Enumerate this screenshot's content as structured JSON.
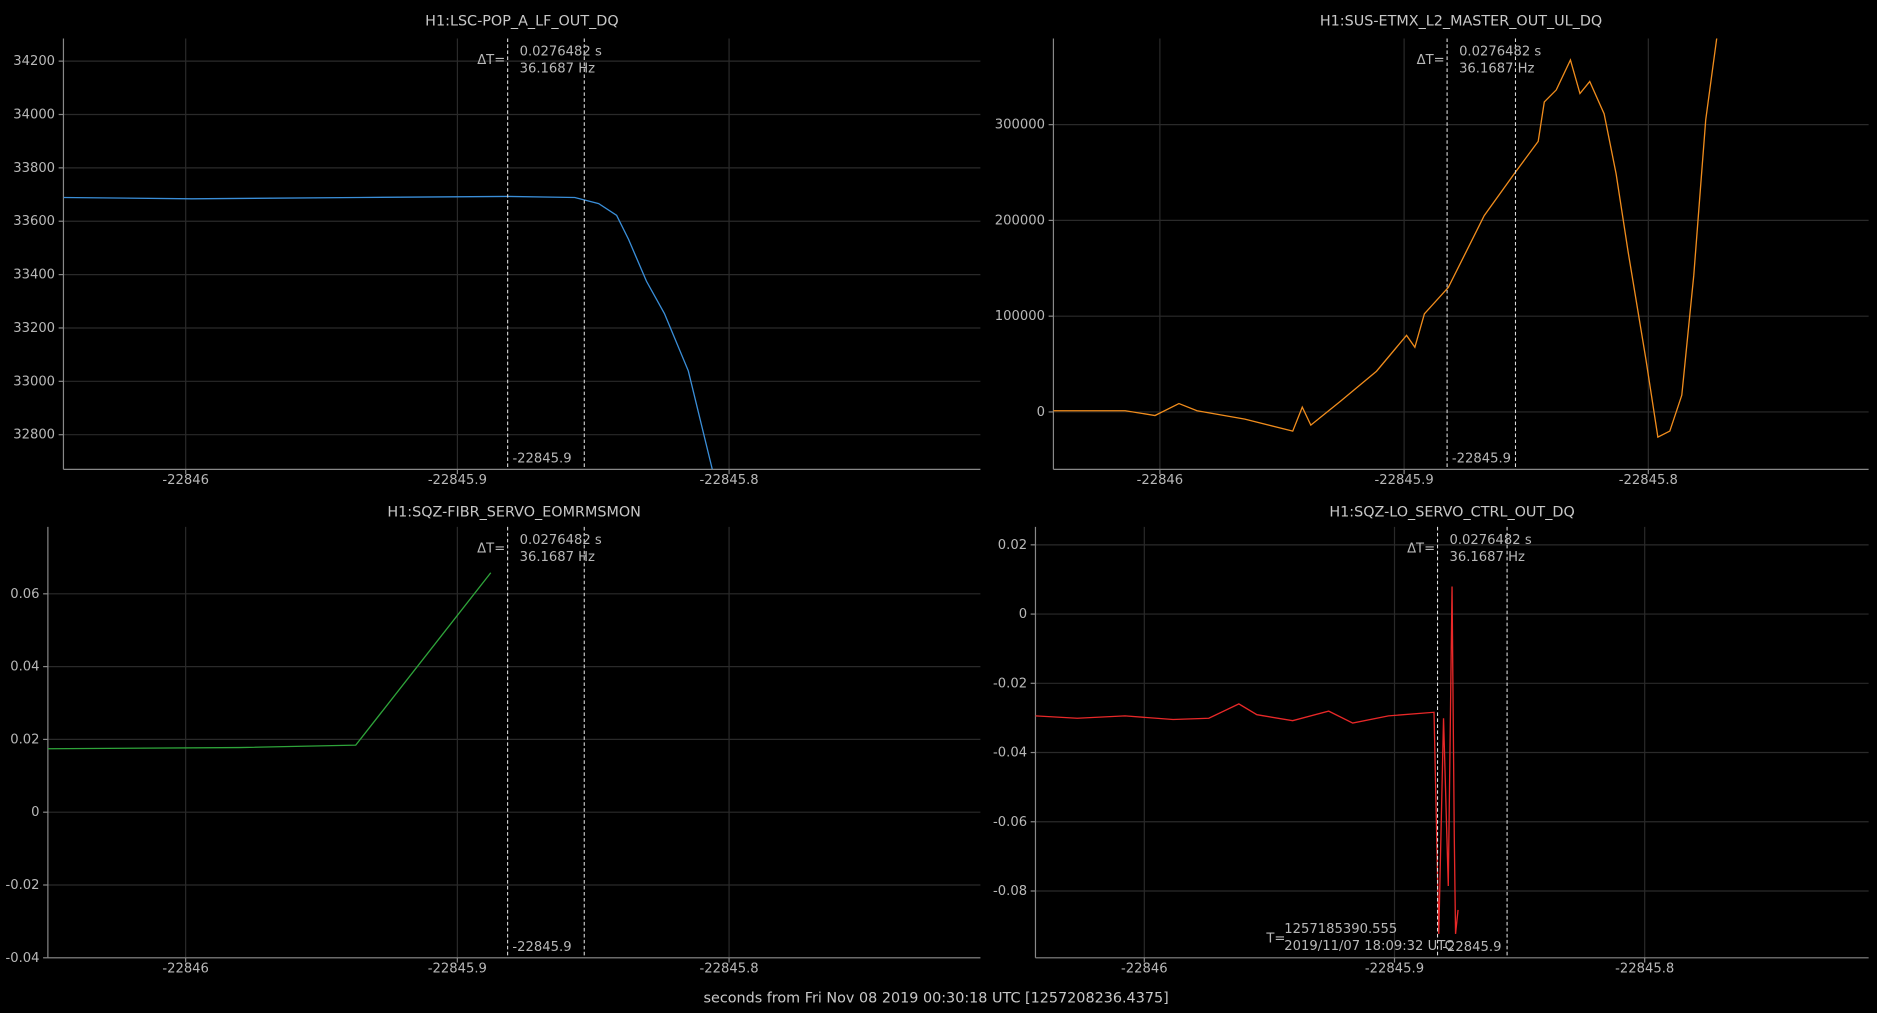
{
  "chart_data": [
    {
      "type": "line",
      "title": "H1:LSC-POP_A_LF_OUT_DQ",
      "x": [
        -22846.0449,
        -22845.9978,
        -22845.9361,
        -22845.8815,
        -22845.8568,
        -22845.848,
        -22845.8414,
        -22845.837,
        -22845.8304,
        -22845.8238,
        -22845.815,
        -22845.8062
      ],
      "series": [
        {
          "color": "#3a8ed8",
          "values": [
            33689,
            33684,
            33689,
            33693,
            33689,
            33666,
            33622,
            33532,
            33375,
            33254,
            33039,
            32671
          ]
        }
      ],
      "xlim": [
        -22846.045,
        -22845.7075
      ],
      "ylim": [
        32670,
        34285
      ],
      "xticks": [
        -22846,
        -22845.9,
        -22845.8
      ],
      "yticks": [
        32800,
        33000,
        33200,
        33400,
        33600,
        33800,
        34000,
        34200
      ],
      "grid": true,
      "cursors": [
        -22845.8815,
        -22845.8533
      ],
      "cursor_texts": [
        "ΔT=",
        "0.0276482 s",
        "36.1687 Hz",
        "-22845.9"
      ]
    },
    {
      "type": "line",
      "title": "H1:SUS-ETMX_L2_MASTER_OUT_UL_DQ",
      "x": [
        -22846.0436,
        -22846.0142,
        -22846.002,
        -22845.9922,
        -22845.9848,
        -22845.9652,
        -22845.9456,
        -22845.9417,
        -22845.9382,
        -22845.926,
        -22845.9113,
        -22845.899,
        -22845.8956,
        -22845.8917,
        -22845.8819,
        -22845.8672,
        -22845.8549,
        -22845.8451,
        -22845.8426,
        -22845.8377,
        -22845.8319,
        -22845.828,
        -22845.824,
        -22845.8181,
        -22845.8132,
        -22845.8083,
        -22845.801,
        -22845.7961,
        -22845.7912,
        -22845.7863,
        -22845.7814,
        -22845.7765,
        -22845.772
      ],
      "series": [
        {
          "color": "#f08c1c",
          "values": [
            1250,
            1250,
            -3750,
            8750,
            1250,
            -7500,
            -20000,
            5000,
            -13750,
            11250,
            42500,
            80000,
            67500,
            102500,
            130000,
            205000,
            248750,
            282500,
            323750,
            336250,
            367500,
            332500,
            345000,
            311250,
            248750,
            167500,
            55000,
            -26250,
            -20000,
            17500,
            142500,
            305000,
            390000
          ]
        }
      ],
      "xlim": [
        -22846.0436,
        -22845.7098
      ],
      "ylim": [
        -60000,
        390000
      ],
      "xticks": [
        -22846,
        -22845.9,
        -22845.8
      ],
      "yticks": [
        0,
        100000,
        200000,
        300000
      ],
      "grid": true,
      "cursors": [
        -22845.8824,
        -22845.8544
      ],
      "cursor_texts": [
        "ΔT=",
        "0.0276482 s",
        "36.1687 Hz",
        "-22845.9"
      ]
    },
    {
      "type": "line",
      "title": "H1:SQZ-FIBR_SERVO_EOMRMSMON",
      "x": [
        -22846.0507,
        -22845.9802,
        -22845.9374,
        -22845.8877
      ],
      "series": [
        {
          "color": "#2ea43a",
          "values": [
            0.01743,
            0.01776,
            0.01842,
            0.06579
          ]
        }
      ],
      "xlim": [
        -22846.0507,
        -22845.7075
      ],
      "ylim": [
        -0.04,
        0.0784
      ],
      "xticks": [
        -22846,
        -22845.9,
        -22845.8
      ],
      "yticks": [
        -0.04,
        -0.02,
        0,
        0.02,
        0.04,
        0.06
      ],
      "grid": true,
      "cursors": [
        -22845.8815,
        -22845.8533
      ],
      "cursor_texts": [
        "ΔT=",
        "0.0276482 s",
        "36.1687 Hz",
        "-22845.9"
      ]
    },
    {
      "type": "line",
      "title": "H1:SQZ-LO_SERVO_CTRL_OUT_DQ",
      "x": [
        -22846.0435,
        -22846.0268,
        -22846.0077,
        -22845.9885,
        -22845.9742,
        -22845.9622,
        -22845.955,
        -22845.9407,
        -22845.9263,
        -22845.9167,
        -22845.9024,
        -22845.8842,
        -22845.8823,
        -22845.8804,
        -22845.8785,
        -22845.877,
        -22845.8761,
        -22845.8756,
        -22845.8746
      ],
      "series": [
        {
          "color": "#e82828",
          "values": [
            -0.02941,
            -0.0301,
            -0.02941,
            -0.03045,
            -0.0301,
            -0.02595,
            -0.02907,
            -0.0308,
            -0.02803,
            -0.03149,
            -0.02941,
            -0.02837,
            -0.09239,
            -0.0301,
            -0.07855,
            0.00796,
            -0.06471,
            -0.09239,
            -0.08547
          ]
        }
      ],
      "xlim": [
        -22846.0435,
        -22845.7105
      ],
      "ylim": [
        -0.0993,
        0.0252
      ],
      "xticks": [
        -22846,
        -22845.9,
        -22845.8
      ],
      "yticks": [
        -0.08,
        -0.06,
        -0.04,
        -0.02,
        0,
        0.02
      ],
      "grid": true,
      "cursors": [
        -22845.8828,
        -22845.855
      ],
      "cursor_texts": [
        "ΔT=",
        "0.0276482 s",
        "36.1687 Hz",
        "-22845.9"
      ],
      "annotations": [
        "T=",
        "1257185390.555",
        "2019/11/07 18:09:32 UTC"
      ]
    }
  ],
  "xlabel": "seconds from Fri Nov 08 2019 00:30:18 UTC [1257208236.4375]"
}
